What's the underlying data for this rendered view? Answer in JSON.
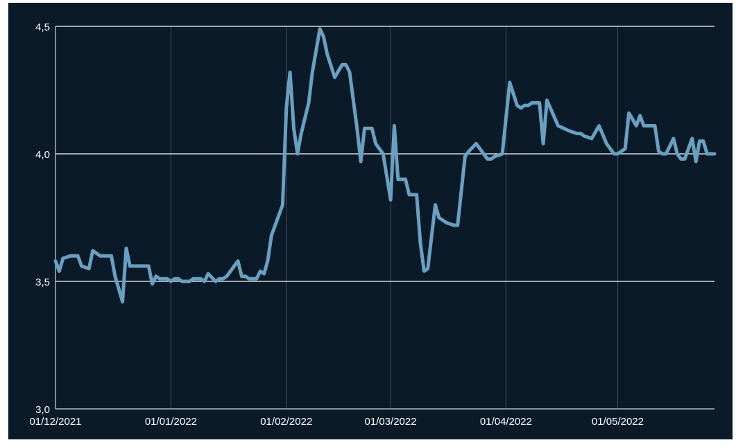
{
  "chart_data": {
    "type": "line",
    "title": "",
    "xlabel": "",
    "ylabel": "",
    "ylim": [
      3.0,
      4.5
    ],
    "y_ticks": [
      "3,0",
      "3,5",
      "4,0",
      "4,5"
    ],
    "y_tick_values": [
      3.0,
      3.5,
      4.0,
      4.5
    ],
    "x_range": [
      "2021-12-01",
      "2022-05-27"
    ],
    "x_ticks": [
      "01/12/2021",
      "01/01/2022",
      "01/02/2022",
      "01/03/2022",
      "01/04/2022",
      "01/05/2022"
    ],
    "x_tick_dates": [
      "2021-12-01",
      "2022-01-01",
      "2022-02-01",
      "2022-03-01",
      "2022-04-01",
      "2022-05-01"
    ],
    "grid": {
      "horizontal": true,
      "vertical": true
    },
    "colors": {
      "background": "#0b1a29",
      "line": "#6b9fc0"
    },
    "series": [
      {
        "x": [
          "2021-12-01",
          "2021-12-02",
          "2021-12-03",
          "2021-12-05",
          "2021-12-07",
          "2021-12-08",
          "2021-12-10",
          "2021-12-11",
          "2021-12-13",
          "2021-12-14",
          "2021-12-16",
          "2021-12-17",
          "2021-12-19",
          "2021-12-20",
          "2021-12-21",
          "2021-12-22",
          "2021-12-24",
          "2021-12-26",
          "2021-12-27",
          "2021-12-28",
          "2021-12-29",
          "2021-12-31",
          "2022-01-01",
          "2022-01-02",
          "2022-01-03",
          "2022-01-04",
          "2022-01-06",
          "2022-01-07",
          "2022-01-09",
          "2022-01-10",
          "2022-01-11",
          "2022-01-13",
          "2022-01-14",
          "2022-01-15",
          "2022-01-16",
          "2022-01-18",
          "2022-01-19",
          "2022-01-20",
          "2022-01-21",
          "2022-01-22",
          "2022-01-24",
          "2022-01-25",
          "2022-01-26",
          "2022-01-27",
          "2022-01-28",
          "2022-01-31",
          "2022-02-01",
          "2022-02-02",
          "2022-02-03",
          "2022-02-04",
          "2022-02-05",
          "2022-02-06",
          "2022-02-07",
          "2022-02-08",
          "2022-02-10",
          "2022-02-11",
          "2022-02-12",
          "2022-02-14",
          "2022-02-16",
          "2022-02-17",
          "2022-02-18",
          "2022-02-20",
          "2022-02-21",
          "2022-02-22",
          "2022-02-24",
          "2022-02-25",
          "2022-02-26",
          "2022-02-27",
          "2022-03-01",
          "2022-03-02",
          "2022-03-03",
          "2022-03-04",
          "2022-03-05",
          "2022-03-06",
          "2022-03-08",
          "2022-03-09",
          "2022-03-10",
          "2022-03-11",
          "2022-03-13",
          "2022-03-14",
          "2022-03-16",
          "2022-03-18",
          "2022-03-19",
          "2022-03-21",
          "2022-03-22",
          "2022-03-24",
          "2022-03-27",
          "2022-03-28",
          "2022-03-29",
          "2022-03-31",
          "2022-04-02",
          "2022-04-04",
          "2022-04-05",
          "2022-04-06",
          "2022-04-07",
          "2022-04-08",
          "2022-04-10",
          "2022-04-11",
          "2022-04-12",
          "2022-04-15",
          "2022-04-18",
          "2022-04-20",
          "2022-04-21",
          "2022-04-22",
          "2022-04-24",
          "2022-04-26",
          "2022-04-28",
          "2022-04-30",
          "2022-05-01",
          "2022-05-02",
          "2022-05-03",
          "2022-05-04",
          "2022-05-06",
          "2022-05-07",
          "2022-05-08",
          "2022-05-11",
          "2022-05-12",
          "2022-05-13",
          "2022-05-14",
          "2022-05-16",
          "2022-05-17",
          "2022-05-18",
          "2022-05-19",
          "2022-05-21",
          "2022-05-22",
          "2022-05-23",
          "2022-05-24",
          "2022-05-25",
          "2022-05-26",
          "2022-05-27"
        ],
        "y": [
          3.58,
          3.54,
          3.59,
          3.6,
          3.6,
          3.56,
          3.55,
          3.62,
          3.6,
          3.6,
          3.6,
          3.52,
          3.42,
          3.63,
          3.56,
          3.56,
          3.56,
          3.56,
          3.49,
          3.52,
          3.51,
          3.51,
          3.5,
          3.51,
          3.51,
          3.5,
          3.5,
          3.51,
          3.51,
          3.5,
          3.53,
          3.5,
          3.51,
          3.51,
          3.52,
          3.56,
          3.58,
          3.52,
          3.52,
          3.51,
          3.51,
          3.54,
          3.53,
          3.58,
          3.68,
          3.8,
          4.18,
          4.32,
          4.1,
          4.0,
          4.08,
          4.14,
          4.2,
          4.32,
          4.49,
          4.46,
          4.39,
          4.3,
          4.35,
          4.35,
          4.32,
          4.1,
          3.97,
          4.1,
          4.1,
          4.04,
          4.02,
          4.0,
          3.82,
          4.11,
          3.9,
          3.9,
          3.9,
          3.84,
          3.84,
          3.65,
          3.54,
          3.55,
          3.8,
          3.75,
          3.73,
          3.72,
          3.72,
          3.99,
          4.01,
          4.04,
          3.98,
          3.98,
          3.99,
          4.0,
          4.28,
          4.19,
          4.18,
          4.19,
          4.19,
          4.2,
          4.2,
          4.04,
          4.21,
          4.11,
          4.09,
          4.08,
          4.08,
          4.07,
          4.06,
          4.11,
          4.04,
          4.0,
          4.0,
          4.01,
          4.02,
          4.16,
          4.11,
          4.15,
          4.11,
          4.11,
          4.01,
          4.0,
          4.0,
          4.06,
          4.0,
          3.98,
          3.98,
          4.06,
          3.97,
          4.05,
          4.05,
          4.0,
          4.0,
          4.0
        ]
      }
    ]
  }
}
